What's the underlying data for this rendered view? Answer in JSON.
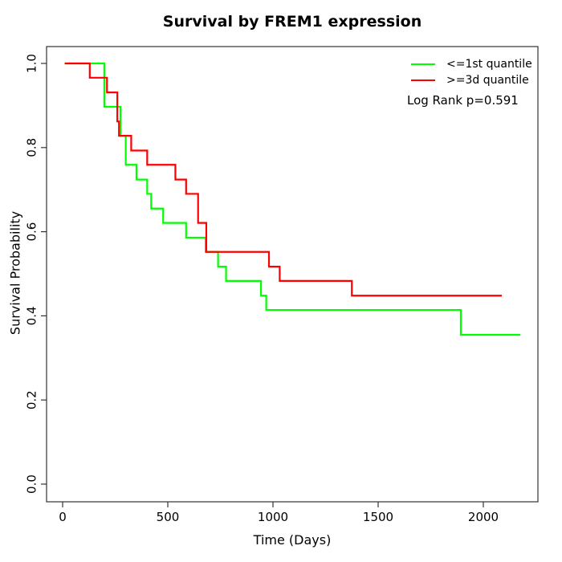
{
  "title": "Survival by FREM1 expression",
  "axes": {
    "x": {
      "label": "Time (Days)",
      "tick_labels": [
        "0",
        "500",
        "1000",
        "1500",
        "2000"
      ]
    },
    "y": {
      "label": "Survival Probability",
      "tick_labels": [
        "0.0",
        "0.2",
        "0.4",
        "0.6",
        "0.8",
        "1.0"
      ]
    }
  },
  "legend": {
    "items": [
      {
        "label": "<=1st quantile",
        "color": "#00ff00"
      },
      {
        "label": ">=3d quantile",
        "color": "#ff0000"
      }
    ],
    "note": "Log Rank p=0.591"
  },
  "chart_data": {
    "type": "line",
    "subtype": "kaplan-meier-step",
    "title": "Survival by FREM1 expression",
    "xlabel": "Time (Days)",
    "ylabel": "Survival Probability",
    "xlim": [
      0,
      2260
    ],
    "ylim": [
      0.0,
      1.0
    ],
    "x_ticks": [
      0,
      500,
      1000,
      1500,
      2000
    ],
    "y_ticks": [
      0.0,
      0.2,
      0.4,
      0.6,
      0.8,
      1.0
    ],
    "grid": false,
    "legend_position": "top-right",
    "annotation": "Log Rank p=0.591",
    "series": [
      {
        "name": "<=1st quantile",
        "color": "#00ff00",
        "steps": [
          [
            10,
            1.0
          ],
          [
            198,
            0.897
          ],
          [
            275,
            0.828
          ],
          [
            300,
            0.759
          ],
          [
            351,
            0.724
          ],
          [
            402,
            0.69
          ],
          [
            421,
            0.655
          ],
          [
            478,
            0.621
          ],
          [
            587,
            0.586
          ],
          [
            680,
            0.552
          ],
          [
            739,
            0.517
          ],
          [
            777,
            0.483
          ],
          [
            943,
            0.448
          ],
          [
            968,
            0.414
          ],
          [
            1893,
            0.355
          ]
        ],
        "end_time": 2176
      },
      {
        "name": ">=3d quantile",
        "color": "#ff0000",
        "steps": [
          [
            10,
            1.0
          ],
          [
            129,
            0.966
          ],
          [
            211,
            0.931
          ],
          [
            260,
            0.862
          ],
          [
            268,
            0.828
          ],
          [
            326,
            0.793
          ],
          [
            402,
            0.759
          ],
          [
            536,
            0.724
          ],
          [
            587,
            0.69
          ],
          [
            644,
            0.621
          ],
          [
            683,
            0.552
          ],
          [
            981,
            0.517
          ],
          [
            1032,
            0.483
          ],
          [
            1375,
            0.448
          ]
        ],
        "end_time": 2088
      }
    ]
  }
}
